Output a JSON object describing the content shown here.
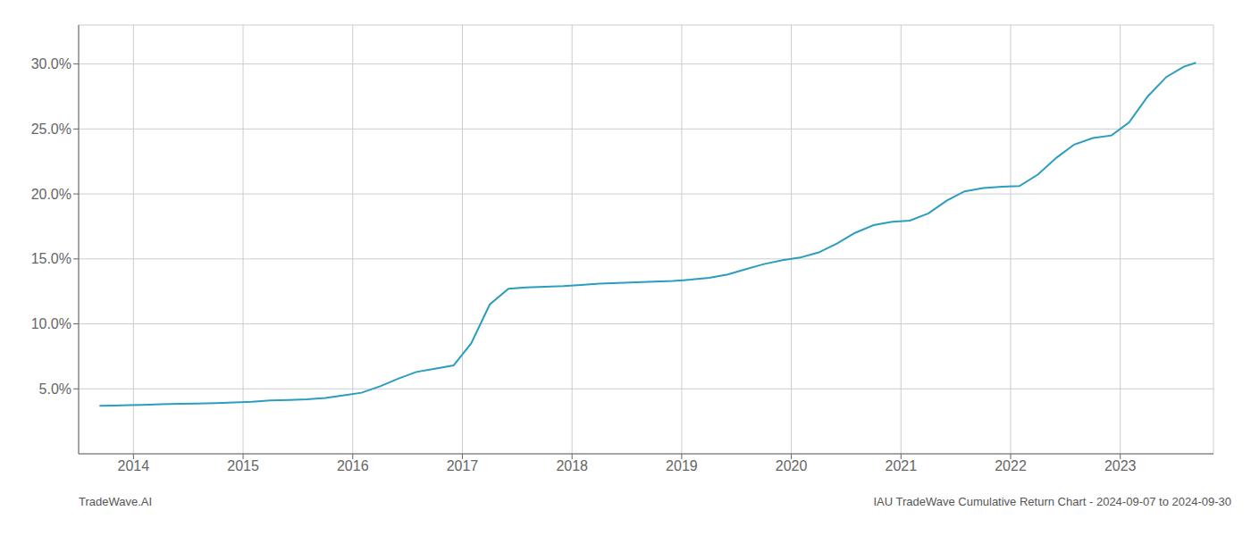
{
  "chart_data": {
    "type": "line",
    "title": "IAU TradeWave Cumulative Return Chart - 2024-09-07 to 2024-09-30",
    "annotations": [
      "TradeWave.AI"
    ],
    "x": [
      2013.69,
      2013.83,
      2013.96,
      2014.08,
      2014.25,
      2014.42,
      2014.58,
      2014.75,
      2014.92,
      2015.08,
      2015.25,
      2015.42,
      2015.58,
      2015.75,
      2015.92,
      2016.08,
      2016.25,
      2016.42,
      2016.58,
      2016.75,
      2016.92,
      2017.08,
      2017.25,
      2017.42,
      2017.58,
      2017.75,
      2017.92,
      2018.08,
      2018.25,
      2018.42,
      2018.58,
      2018.75,
      2018.92,
      2019.08,
      2019.25,
      2019.42,
      2019.58,
      2019.75,
      2019.92,
      2020.08,
      2020.25,
      2020.42,
      2020.58,
      2020.75,
      2020.92,
      2021.08,
      2021.25,
      2021.42,
      2021.58,
      2021.75,
      2021.92,
      2022.08,
      2022.25,
      2022.42,
      2022.58,
      2022.75,
      2022.92,
      2023.08,
      2023.25,
      2023.42,
      2023.58,
      2023.69
    ],
    "values": [
      3.7,
      3.72,
      3.74,
      3.76,
      3.82,
      3.85,
      3.87,
      3.9,
      3.95,
      4.0,
      4.1,
      4.15,
      4.2,
      4.3,
      4.5,
      4.7,
      5.2,
      5.8,
      6.3,
      6.55,
      6.8,
      8.5,
      11.5,
      12.7,
      12.8,
      12.85,
      12.9,
      13.0,
      13.1,
      13.15,
      13.2,
      13.25,
      13.3,
      13.4,
      13.55,
      13.8,
      14.2,
      14.6,
      14.9,
      15.1,
      15.5,
      16.2,
      17.0,
      17.6,
      17.85,
      17.95,
      18.5,
      19.5,
      20.2,
      20.45,
      20.55,
      20.6,
      21.5,
      22.8,
      23.8,
      24.3,
      24.5,
      25.5,
      27.5,
      29.0,
      29.8,
      30.1
    ],
    "color": "#2b9dbf",
    "xlim": [
      2013.5,
      2023.85
    ],
    "xticks": [
      2014,
      2015,
      2016,
      2017,
      2018,
      2019,
      2020,
      2021,
      2022,
      2023
    ],
    "ylim": [
      0,
      33
    ],
    "yticks": [
      {
        "value": 5.0,
        "label": "5.0%"
      },
      {
        "value": 10.0,
        "label": "10.0%"
      },
      {
        "value": 15.0,
        "label": "15.0%"
      },
      {
        "value": 20.0,
        "label": "20.0%"
      },
      {
        "value": 25.0,
        "label": "25.0%"
      },
      {
        "value": 30.0,
        "label": "30.0%"
      }
    ],
    "grid": true
  }
}
